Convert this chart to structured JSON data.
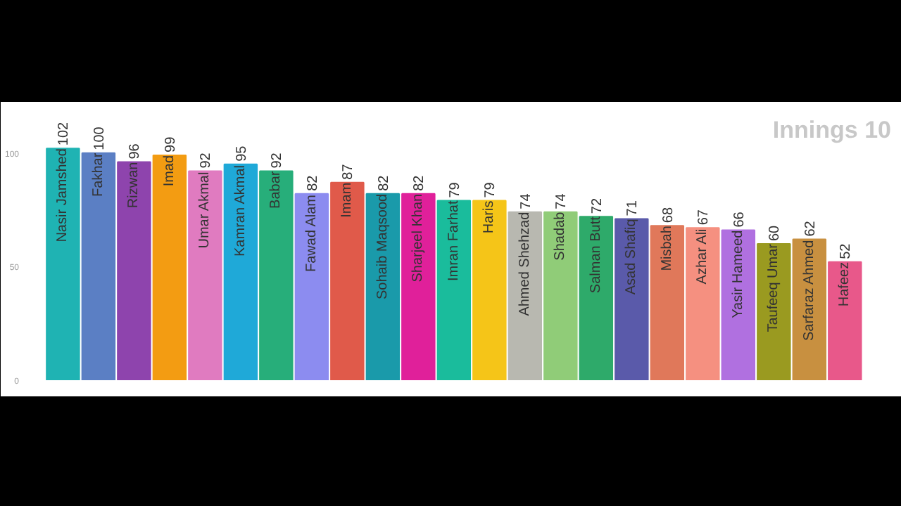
{
  "chart_data": {
    "type": "bar",
    "title": "Innings 10",
    "categories": [
      "Nasir Jamshed",
      "Fakhar",
      "Rizwan",
      "Imad",
      "Umar Akmal",
      "Kamran Akmal",
      "Babar",
      "Fawad Alam",
      "Imam",
      "Sohaib Maqsood",
      "Sharjeel Khan",
      "Imran Farhat",
      "Haris",
      "Ahmed Shehzad",
      "Shadab",
      "Salman Butt",
      "Asad Shafiq",
      "Misbah",
      "Azhar Ali",
      "Yasir Hameed",
      "Taufeeq Umar",
      "Sarfaraz Ahmed",
      "Hafeez"
    ],
    "values": [
      102,
      100,
      96,
      99,
      92,
      95,
      92,
      82,
      87,
      82,
      82,
      79,
      79,
      74,
      74,
      72,
      71,
      68,
      67,
      66,
      60,
      62,
      52
    ],
    "colors": [
      "#1fb3b3",
      "#5b7fc4",
      "#8e44ad",
      "#f39c12",
      "#e07bc0",
      "#1fa9d8",
      "#27ae7a",
      "#8c8cf0",
      "#e05a4a",
      "#1a9aaa",
      "#e0209a",
      "#1abc9c",
      "#f5c518",
      "#b8b8b0",
      "#90cc78",
      "#2eaa6a",
      "#5a5aaa",
      "#e0785a",
      "#f59080",
      "#b070e0",
      "#9a9a20",
      "#c89040",
      "#e8588a"
    ],
    "ylim": [
      0,
      120
    ],
    "yticks": [
      0,
      50,
      100
    ],
    "data_labels": true
  }
}
